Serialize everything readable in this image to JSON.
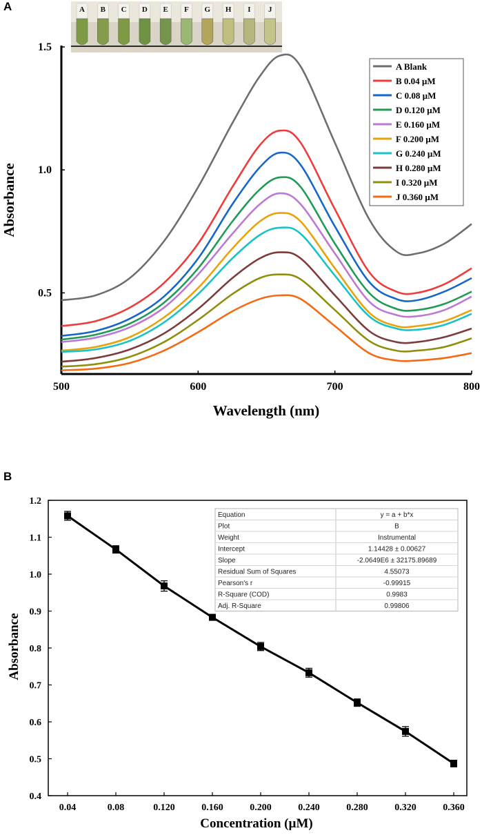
{
  "panels": {
    "a_label": "A",
    "b_label": "B"
  },
  "chart_data": [
    {
      "type": "line",
      "title": "",
      "xlabel": "Wavelength (nm)",
      "ylabel": "Absorbance",
      "xlim": [
        500,
        800
      ],
      "ylim": [
        0.17,
        1.5
      ],
      "xticks": [
        500,
        600,
        700,
        800
      ],
      "xtick_labels": [
        "500",
        "600",
        "700",
        "800"
      ],
      "yticks": [
        0.5,
        1.0,
        1.5
      ],
      "ytick_labels": [
        "0.5",
        "1.0",
        "1.5"
      ],
      "grid": false,
      "legend_position": "top-right",
      "inset_photo": {
        "description_labels": [
          "A",
          "B",
          "C",
          "D",
          "E",
          "F",
          "G",
          "H",
          "I",
          "J"
        ],
        "vial_colors": [
          "#7e9a44",
          "#839d4c",
          "#7f9a45",
          "#6f9142",
          "#74954b",
          "#9ab773",
          "#b3a55a",
          "#c0bf80",
          "#b6b77e",
          "#c3c489"
        ]
      },
      "x": [
        500,
        525,
        550,
        575,
        600,
        625,
        645,
        660,
        675,
        700,
        725,
        745,
        760,
        780,
        800
      ],
      "series": [
        {
          "name": "A Blank",
          "color": "#6e6e6e",
          "values": [
            0.47,
            0.49,
            0.56,
            0.71,
            0.93,
            1.19,
            1.38,
            1.465,
            1.42,
            1.11,
            0.8,
            0.668,
            0.66,
            0.7,
            0.78
          ]
        },
        {
          "name": "B 0.04 µM",
          "color": "#ef3b3b",
          "values": [
            0.365,
            0.385,
            0.44,
            0.54,
            0.7,
            0.93,
            1.1,
            1.16,
            1.11,
            0.84,
            0.585,
            0.505,
            0.5,
            0.535,
            0.6
          ]
        },
        {
          "name": "C 0.08 µM",
          "color": "#1766c9",
          "values": [
            0.325,
            0.345,
            0.395,
            0.485,
            0.64,
            0.86,
            1.01,
            1.07,
            1.02,
            0.77,
            0.545,
            0.475,
            0.47,
            0.505,
            0.56
          ]
        },
        {
          "name": "D 0.120 µM",
          "color": "#1f9b55",
          "values": [
            0.31,
            0.33,
            0.375,
            0.46,
            0.6,
            0.79,
            0.92,
            0.97,
            0.93,
            0.7,
            0.5,
            0.435,
            0.43,
            0.455,
            0.505
          ]
        },
        {
          "name": "E 0.160 µM",
          "color": "#bb78d4",
          "values": [
            0.3,
            0.318,
            0.36,
            0.44,
            0.575,
            0.74,
            0.86,
            0.905,
            0.86,
            0.66,
            0.465,
            0.41,
            0.405,
            0.43,
            0.485
          ]
        },
        {
          "name": "F 0.200 µM",
          "color": "#e8a20c",
          "values": [
            0.265,
            0.28,
            0.32,
            0.4,
            0.52,
            0.68,
            0.79,
            0.825,
            0.79,
            0.6,
            0.42,
            0.365,
            0.365,
            0.385,
            0.43
          ]
        },
        {
          "name": "G 0.240 µM",
          "color": "#19c2c7",
          "values": [
            0.26,
            0.27,
            0.305,
            0.38,
            0.495,
            0.64,
            0.735,
            0.765,
            0.74,
            0.57,
            0.405,
            0.355,
            0.35,
            0.37,
            0.415
          ]
        },
        {
          "name": "H 0.280 µM",
          "color": "#7e3b3b",
          "values": [
            0.22,
            0.235,
            0.27,
            0.335,
            0.435,
            0.56,
            0.64,
            0.665,
            0.64,
            0.49,
            0.345,
            0.3,
            0.3,
            0.32,
            0.355
          ]
        },
        {
          "name": "I 0.320 µM",
          "color": "#8f8f0e",
          "values": [
            0.2,
            0.21,
            0.24,
            0.3,
            0.39,
            0.495,
            0.56,
            0.575,
            0.555,
            0.43,
            0.305,
            0.265,
            0.265,
            0.28,
            0.315
          ]
        },
        {
          "name": "J 0.360 µM",
          "color": "#f56a12",
          "values": [
            0.185,
            0.192,
            0.215,
            0.265,
            0.34,
            0.425,
            0.475,
            0.49,
            0.475,
            0.365,
            0.255,
            0.225,
            0.225,
            0.235,
            0.255
          ]
        }
      ]
    },
    {
      "type": "scatter",
      "title": "",
      "xlabel": "Concentration (µM)",
      "ylabel": "Absorbance",
      "categories": [
        "0.04",
        "0.08",
        "0.120",
        "0.160",
        "0.200",
        "0.240",
        "0.280",
        "0.320",
        "0.360"
      ],
      "ylim": [
        0.4,
        1.2
      ],
      "yticks": [
        0.4,
        0.5,
        0.6,
        0.7,
        0.8,
        0.9,
        1.0,
        1.1,
        1.2
      ],
      "ytick_labels": [
        "0.4",
        "0.5",
        "0.6",
        "0.7",
        "0.8",
        "0.9",
        "1.0",
        "1.1",
        "1.2"
      ],
      "grid": false,
      "series": [
        {
          "name": "B",
          "color": "#000000",
          "values": [
            1.158,
            1.067,
            0.968,
            0.883,
            0.804,
            0.733,
            0.652,
            0.574,
            0.487
          ],
          "errors": [
            0.012,
            0.01,
            0.014,
            0.008,
            0.011,
            0.012,
            0.01,
            0.013,
            0.009
          ]
        }
      ],
      "fit_table": {
        "rows": [
          [
            "Equation",
            "y = a + b*x"
          ],
          [
            "Plot",
            "B"
          ],
          [
            "Weight",
            "Instrumental"
          ],
          [
            "Intercept",
            "1.14428 ± 0.00627"
          ],
          [
            "Slope",
            "-2.0649E6 ± 32175.89689"
          ],
          [
            "Residual Sum of Squares",
            "4.55073"
          ],
          [
            "Pearson's r",
            "-0.99915"
          ],
          [
            "R-Square (COD)",
            "0.9983"
          ],
          [
            "Adj. R-Square",
            "0.99806"
          ]
        ]
      }
    }
  ]
}
